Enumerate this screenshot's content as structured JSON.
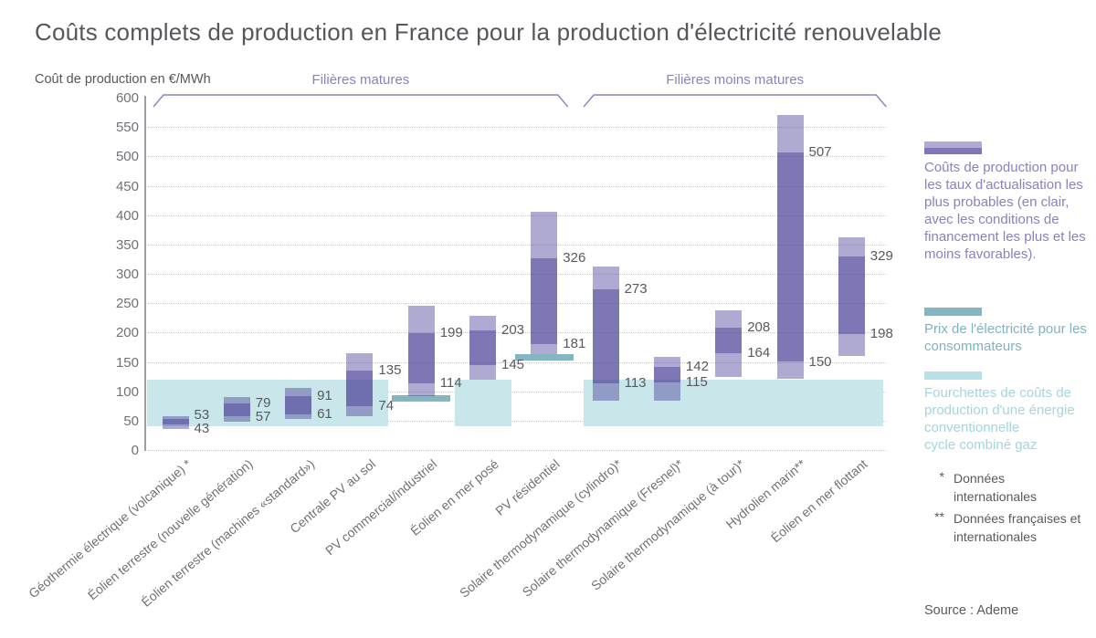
{
  "header": {
    "title": "Coûts complets de production en France pour la production d'électricité renouvelable"
  },
  "source": "Source : Ademe",
  "footnotes": [
    {
      "marker": "*",
      "text": "Données internationales"
    },
    {
      "marker": "**",
      "text": "Données françaises et internationales"
    }
  ],
  "legend": {
    "items": [
      {
        "name": "production-costs-range",
        "label": "Coûts de production pour les taux d'actualisation les plus probables (en clair, avec les conditions de financement les plus et les moins favorables)."
      },
      {
        "name": "consumer-electricity-price",
        "label": "Prix de l'électricité pour les consommateurs"
      },
      {
        "name": "conventional-energy-cost-range",
        "label": "Fourchettes de coûts de production d'une énergie conventionnelle\ncycle combiné gaz"
      }
    ]
  },
  "colors": {
    "probable_range_purple": "#7f77b5",
    "full_range_purple": "#b0aad4",
    "conventional_band_teal": "#c9e7eb",
    "consumer_price_teal": "#84b6c1",
    "accent_purple_text": "#8a81bf",
    "teal_text": "#80b2c1",
    "light_teal_text": "#a6d4de",
    "title_text": "#55575b",
    "value_label_text": "#58595c"
  },
  "chart_data": {
    "type": "bar",
    "variant": "floating-range-bars",
    "title": "Coûts complets de production en France pour la production d'électricité renouvelable",
    "ylabel": "Coût de production en €/MWh",
    "unit": "€/MWh",
    "ylim": [
      0,
      600
    ],
    "ytick_step": 50,
    "grid": "dotted-horizontal",
    "legend_position": "right",
    "groups": [
      {
        "label": "Filières matures",
        "from": 0,
        "to": 6
      },
      {
        "label": "Filières moins matures",
        "from": 7,
        "to": 11
      }
    ],
    "bars": [
      {
        "category": "Géothermie électrique (volcanique) *",
        "group": 0,
        "probable_low": 43,
        "probable_high": 53,
        "full_low": 36,
        "full_high": 58
      },
      {
        "category": "Éolien terrestre (nouvelle génération)",
        "group": 0,
        "probable_low": 57,
        "probable_high": 79,
        "full_low": 48,
        "full_high": 90
      },
      {
        "category": "Éolien terrestre (machines «standard»)",
        "group": 0,
        "probable_low": 61,
        "probable_high": 91,
        "full_low": 53,
        "full_high": 106
      },
      {
        "category": "Centrale PV au sol",
        "group": 0,
        "probable_low": 74,
        "probable_high": 135,
        "full_low": 58,
        "full_high": 165
      },
      {
        "category": "PV commercial/industriel",
        "group": 0,
        "probable_low": 114,
        "probable_high": 199,
        "full_low": 92,
        "full_high": 245
      },
      {
        "category": "Éolien en mer posé",
        "group": 0,
        "probable_low": 145,
        "probable_high": 203,
        "full_low": 119,
        "full_high": 229
      },
      {
        "category": "PV résidentiel",
        "group": 0,
        "probable_low": 181,
        "probable_high": 326,
        "full_low": 163,
        "full_high": 406
      },
      {
        "category": "Solaire thermodynamique (cylindro)*",
        "group": 1,
        "probable_low": 113,
        "probable_high": 273,
        "full_low": 84,
        "full_high": 312
      },
      {
        "category": "Solaire thermodynamique (Fresnel)*",
        "group": 1,
        "probable_low": 115,
        "probable_high": 142,
        "full_low": 84,
        "full_high": 158
      },
      {
        "category": "Solaire thermodynamique (à tour)*",
        "group": 1,
        "probable_low": 164,
        "probable_high": 208,
        "full_low": 124,
        "full_high": 238
      },
      {
        "category": "Hydrolien marin**",
        "group": 1,
        "probable_low": 150,
        "probable_high": 507,
        "full_low": 121,
        "full_high": 570
      },
      {
        "category": "Éolien en mer flottant",
        "group": 1,
        "probable_low": 198,
        "probable_high": 329,
        "full_low": 160,
        "full_high": 362
      }
    ],
    "conventional_bands": [
      {
        "from_cat": 0,
        "to_cat": 3,
        "low": 40,
        "high": 120
      },
      {
        "from_cat": 5,
        "to_cat": 5,
        "low": 40,
        "high": 120
      },
      {
        "from_cat": 7,
        "to_cat": 11,
        "low": 40,
        "high": 120
      }
    ],
    "consumer_price_markers": [
      {
        "cat": 4,
        "low": 82,
        "high": 93
      },
      {
        "cat": 6,
        "low": 152,
        "high": 163
      }
    ]
  }
}
